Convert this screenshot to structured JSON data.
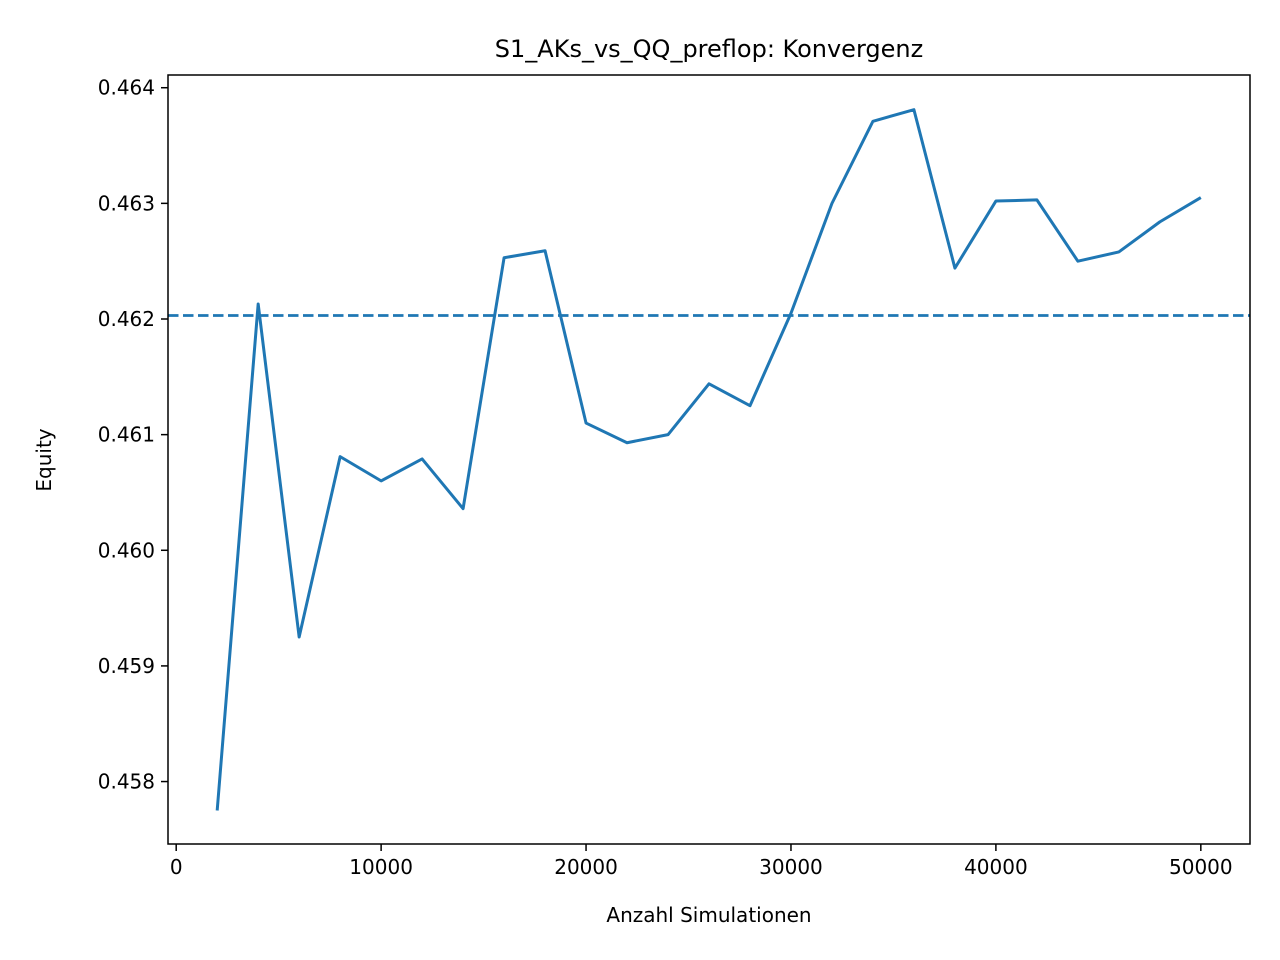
{
  "chart_data": {
    "type": "line",
    "title": "S1_AKs_vs_QQ_preflop: Konvergenz",
    "xlabel": "Anzahl Simulationen",
    "ylabel": "Equity",
    "xlim": [
      -400,
      52400
    ],
    "ylim": [
      0.45746,
      0.46411
    ],
    "xticks": [
      0,
      10000,
      20000,
      30000,
      40000,
      50000
    ],
    "yticks": [
      0.458,
      0.459,
      0.46,
      0.461,
      0.462,
      0.463,
      0.464
    ],
    "xtick_labels": [
      "0",
      "10000",
      "20000",
      "30000",
      "40000",
      "50000"
    ],
    "ytick_labels": [
      "0.458",
      "0.459",
      "0.460",
      "0.461",
      "0.462",
      "0.463",
      "0.464"
    ],
    "grid": false,
    "series": [
      {
        "color": "#1f77b4",
        "style": "solid",
        "x": [
          2000,
          4000,
          6000,
          8000,
          10000,
          12000,
          14000,
          16000,
          18000,
          20000,
          22000,
          24000,
          26000,
          28000,
          30000,
          32000,
          34000,
          36000,
          38000,
          40000,
          42000,
          44000,
          46000,
          48000,
          50000
        ],
        "values": [
          0.45775,
          0.46213,
          0.45925,
          0.46081,
          0.4606,
          0.46079,
          0.46036,
          0.46253,
          0.46259,
          0.4611,
          0.46093,
          0.461,
          0.46144,
          0.46125,
          0.46205,
          0.463,
          0.46371,
          0.46381,
          0.46244,
          0.46302,
          0.46303,
          0.4625,
          0.46258,
          0.46284,
          0.46305
        ]
      }
    ],
    "reference_lines": [
      {
        "orientation": "horizontal",
        "y": 0.46203,
        "color": "#1f77b4",
        "style": "dashed"
      }
    ]
  }
}
